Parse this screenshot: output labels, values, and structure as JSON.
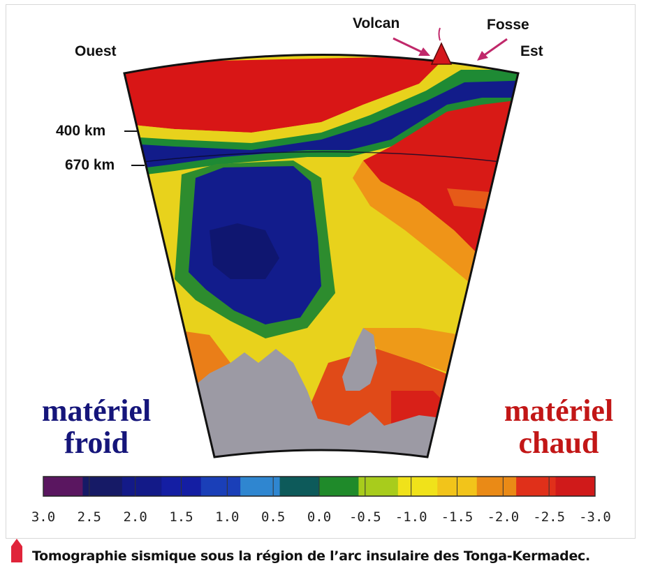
{
  "labels": {
    "west": "Ouest",
    "east": "Est",
    "volcano": "Volcan",
    "trench": "Fosse",
    "depth_400": "400 km",
    "depth_670": "670 km"
  },
  "cold_material": {
    "line1": "matériel",
    "line2": "froid",
    "color": "#15157a"
  },
  "hot_material": {
    "line1": "matériel",
    "line2": "chaud",
    "color": "#c21616"
  },
  "scale": {
    "ticks": [
      "3.0",
      "2.5",
      "2.0",
      "1.5",
      "1.0",
      "0.5",
      "0.0",
      "-0.5",
      "-1.0",
      "-1.5",
      "-2.0",
      "-2.5",
      "-3.0"
    ],
    "colors": [
      "#5a1660",
      "#161a66",
      "#131a88",
      "#141ea3",
      "#1a3fb8",
      "#2f86d0",
      "#0d5a5a",
      "#1f8a2a",
      "#a8cc1c",
      "#f0e21a",
      "#f2c41a",
      "#ea8a16",
      "#e0301a",
      "#d01a1a"
    ]
  },
  "caption": "Tomographie sismique sous la région de l’arc insulaire des Tonga-Kermadec.",
  "arrow_color": "#c0286a",
  "caption_icon_color": "#e0243a"
}
